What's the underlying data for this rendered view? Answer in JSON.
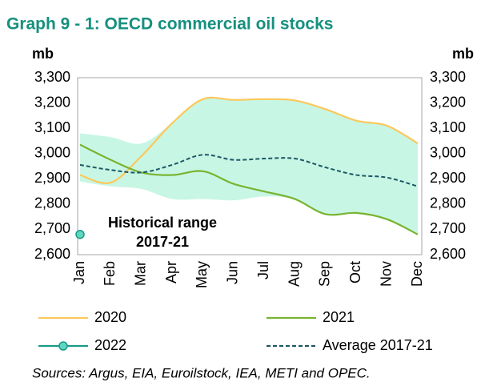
{
  "chart_data": {
    "type": "line",
    "title": "Graph 9 - 1: OECD commercial oil stocks",
    "ylabel": "mb",
    "y2label": "mb",
    "categories": [
      "Jan",
      "Feb",
      "Mar",
      "Apr",
      "May",
      "Jun",
      "Jul",
      "Aug",
      "Sep",
      "Oct",
      "Nov",
      "Dec"
    ],
    "ylim": [
      2600,
      3300
    ],
    "yticks": [
      {
        "value": 2600,
        "label": "2,600"
      },
      {
        "value": 2700,
        "label": "2,700"
      },
      {
        "value": 2800,
        "label": "2,800"
      },
      {
        "value": 2900,
        "label": "2,900"
      },
      {
        "value": 3000,
        "label": "3,000"
      },
      {
        "value": 3100,
        "label": "3,100"
      },
      {
        "value": 3200,
        "label": "3,200"
      },
      {
        "value": 3300,
        "label": "3,300"
      }
    ],
    "y2lim": [
      2600,
      3300
    ],
    "y2ticks": [
      {
        "value": 2600,
        "label": "2,600"
      },
      {
        "value": 2700,
        "label": "2,700"
      },
      {
        "value": 2800,
        "label": "2,800"
      },
      {
        "value": 2900,
        "label": "2,900"
      },
      {
        "value": 3000,
        "label": "3,000"
      },
      {
        "value": 3100,
        "label": "3,100"
      },
      {
        "value": 3200,
        "label": "3,200"
      },
      {
        "value": 3300,
        "label": "3,300"
      }
    ],
    "range": {
      "color": "#c8f6e4",
      "upper": [
        3080,
        3065,
        3040,
        3120,
        3215,
        3212,
        3215,
        3210,
        3175,
        3130,
        3110,
        3040
      ],
      "lower": [
        2890,
        2870,
        2860,
        2820,
        2820,
        2815,
        2830,
        2820,
        2760,
        2765,
        2740,
        2680
      ]
    },
    "annotation": [
      "Historical range",
      "2017-21"
    ],
    "series": [
      {
        "name": "2020",
        "color": "#fcc85a",
        "values": [
          2915,
          2885,
          2990,
          3120,
          3215,
          3212,
          3215,
          3210,
          3175,
          3130,
          3110,
          3040
        ]
      },
      {
        "name": "2021",
        "color": "#78b431",
        "values": [
          3035,
          2975,
          2925,
          2915,
          2930,
          2880,
          2850,
          2820,
          2760,
          2765,
          2740,
          2680
        ]
      },
      {
        "name": "2022",
        "color": "#1a9a8a",
        "marker": true,
        "values": [
          2680,
          null,
          null,
          null,
          null,
          null,
          null,
          null,
          null,
          null,
          null,
          null
        ]
      },
      {
        "name": "Average 2017-21",
        "color": "#1d5866",
        "dashed": true,
        "values": [
          2955,
          2935,
          2925,
          2955,
          2995,
          2975,
          2980,
          2980,
          2945,
          2915,
          2905,
          2870
        ]
      }
    ],
    "source": "Sources: Argus, EIA, Euroilstock, IEA, METI and OPEC."
  }
}
